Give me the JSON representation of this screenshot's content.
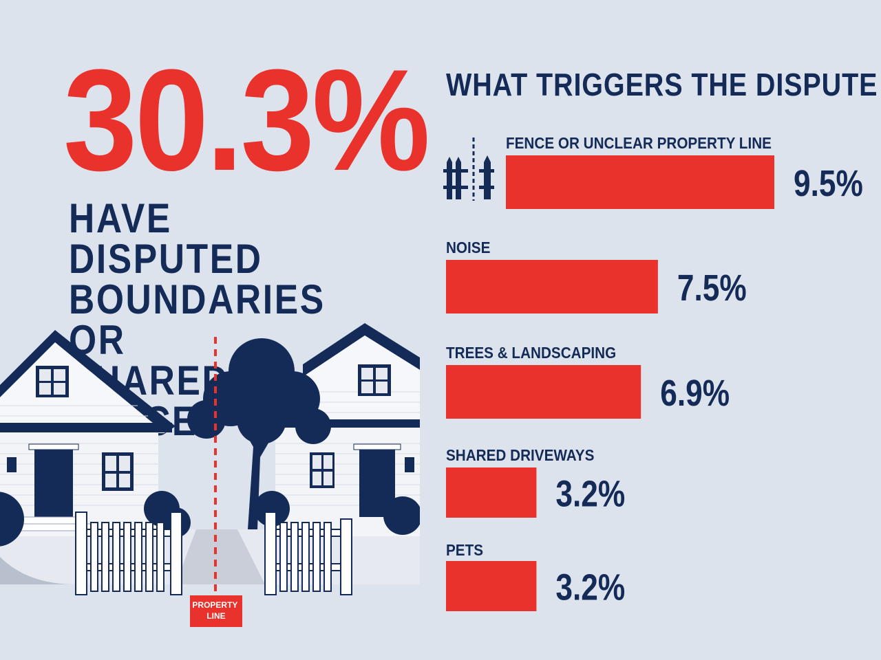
{
  "hero": {
    "stat": "30.3%",
    "headline": "HAVE DISPUTED\nBOUNDARIES OR\nSHARED SPACES"
  },
  "illustration": {
    "property_line_label": "PROPERTY\nLINE"
  },
  "colors": {
    "accent": "#e8322b",
    "navy": "#142b57",
    "background": "#dde3ec"
  },
  "icons": {
    "fence": "fence-icon"
  },
  "chart_data": {
    "type": "bar",
    "orientation": "horizontal",
    "title": "WHAT TRIGGERS THE DISPUTE",
    "categories": [
      "FENCE OR UNCLEAR PROPERTY LINE",
      "NOISE",
      "TREES & LANDSCAPING",
      "SHARED DRIVEWAYS",
      "PETS"
    ],
    "values": [
      9.5,
      7.5,
      6.9,
      3.2,
      3.2
    ],
    "value_labels": [
      "9.5%",
      "7.5%",
      "6.9%",
      "3.2%",
      "3.2%"
    ],
    "unit": "%",
    "grid": false,
    "legend": "none"
  }
}
